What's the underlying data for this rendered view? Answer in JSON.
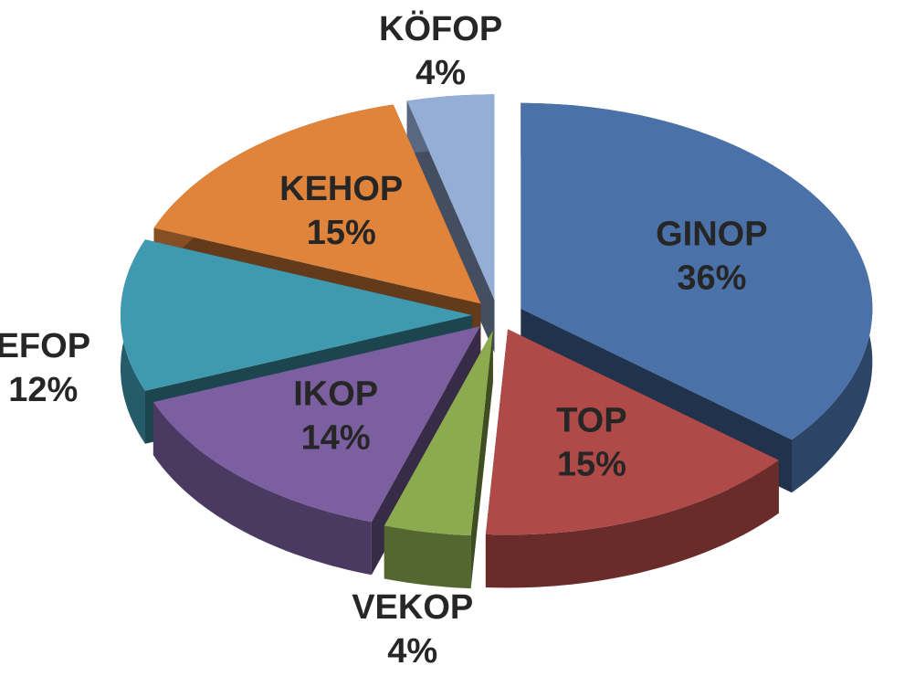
{
  "chart_data": {
    "type": "pie",
    "categories": [
      "GINOP",
      "TOP",
      "VEKOP",
      "IKOP",
      "EFOP",
      "KEHOP",
      "KÖFOP"
    ],
    "values": [
      36,
      15,
      4,
      14,
      12,
      15,
      4
    ],
    "value_labels": [
      "36%",
      "15%",
      "4%",
      "14%",
      "12%",
      "15%",
      "4%"
    ],
    "colors": [
      "#4a72a8",
      "#b04a48",
      "#8cab4e",
      "#7b5fa0",
      "#3f9ab0",
      "#df843a",
      "#94aed6"
    ]
  }
}
